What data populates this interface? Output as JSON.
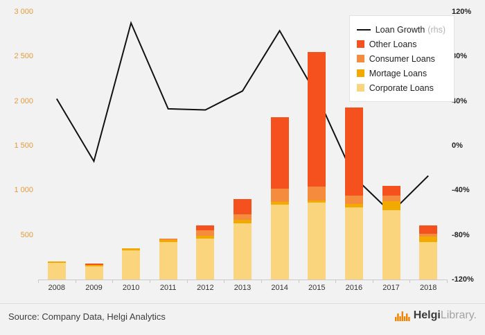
{
  "chart_data": {
    "type": "combo-stacked-bar-line",
    "categories": [
      "2008",
      "2009",
      "2010",
      "2011",
      "2012",
      "2013",
      "2014",
      "2015",
      "2016",
      "2017",
      "2018"
    ],
    "bars": [
      {
        "name": "Corporate Loans",
        "color": "#FBD57E",
        "values": [
          185,
          150,
          325,
          420,
          460,
          630,
          840,
          860,
          810,
          780,
          420
        ]
      },
      {
        "name": "Mortage Loans",
        "color": "#F2A900",
        "values": [
          15,
          10,
          25,
          20,
          30,
          40,
          30,
          30,
          40,
          100,
          60
        ]
      },
      {
        "name": "Consumer Loans",
        "color": "#F58B3C",
        "values": [
          0,
          0,
          0,
          20,
          60,
          60,
          150,
          150,
          90,
          60,
          30
        ]
      },
      {
        "name": "Other Loans",
        "color": "#F4511E",
        "values": [
          0,
          20,
          0,
          0,
          60,
          170,
          800,
          1510,
          990,
          110,
          100
        ]
      }
    ],
    "line": {
      "name": "Loan Growth",
      "suffix": "(rhs)",
      "color": "#111111",
      "axis": "rhs",
      "values": [
        42,
        -14,
        110,
        33,
        32,
        49,
        103,
        45,
        -28,
        -60,
        -27
      ]
    },
    "left_axis": {
      "min": 0,
      "max": 3000,
      "tick_step": 500,
      "tick_labels": [
        "3 000",
        "2 500",
        "2 000",
        "1 500",
        "1 000",
        "500"
      ],
      "label_color": "#E79A3C"
    },
    "right_axis": {
      "min": -120,
      "max": 120,
      "tick_step": 40,
      "tick_labels": [
        "120%",
        "80%",
        "40%",
        "0%",
        "-40%",
        "-80%",
        "-120%"
      ]
    },
    "legend_order": [
      "line",
      "Other Loans",
      "Consumer Loans",
      "Mortage Loans",
      "Corporate Loans"
    ],
    "grid": false,
    "legend_position": "top-right"
  },
  "footer": {
    "source": "Source: Company Data, Helgi Analytics",
    "brand": "Helgi",
    "brand_suffix": "Library."
  }
}
